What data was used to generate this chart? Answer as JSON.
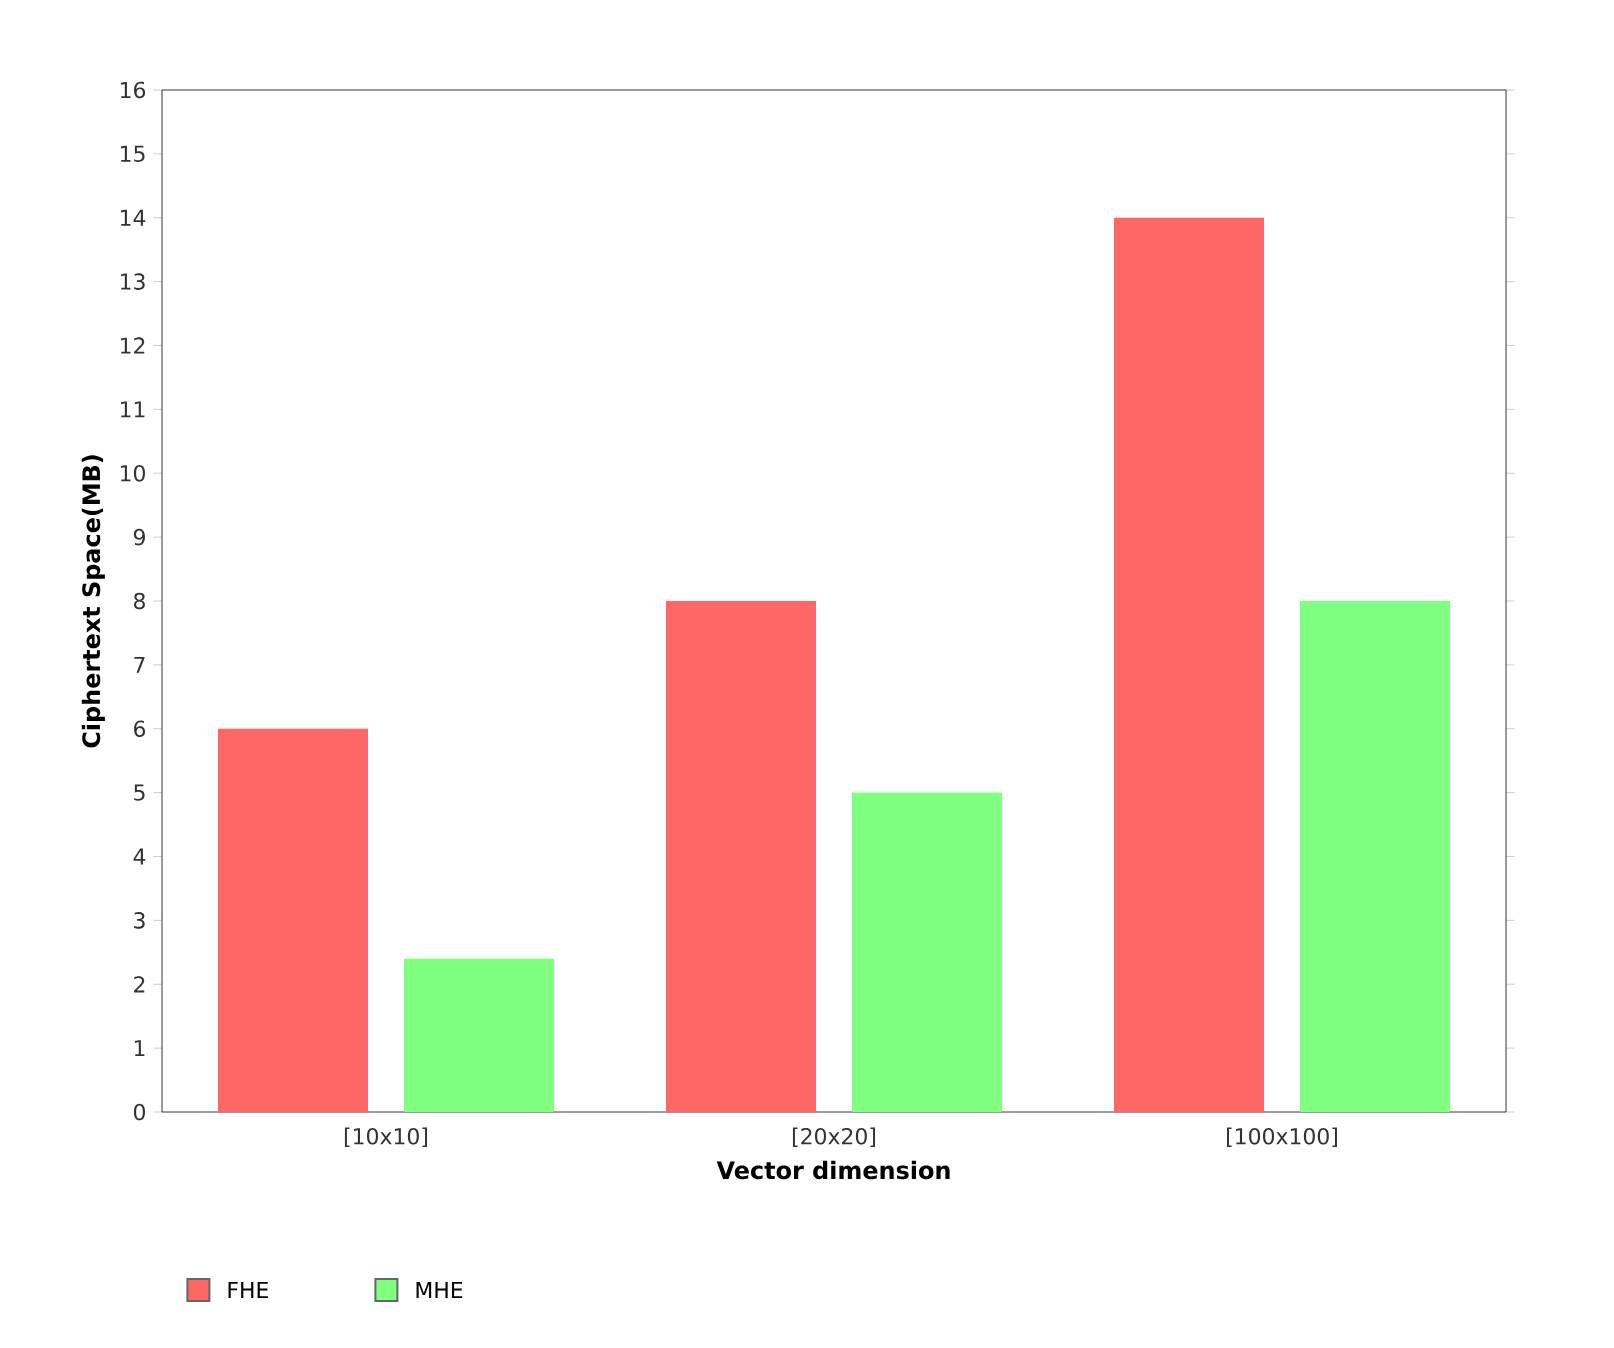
{
  "chart_data": {
    "type": "bar",
    "xlabel": "Vector dimension",
    "ylabel": "Ciphertext Space(MB)",
    "categories": [
      "[10x10]",
      "[20x20]",
      "[100x100]"
    ],
    "series": [
      {
        "name": "FHE",
        "color": "#ff6666",
        "values": [
          6,
          8,
          14
        ]
      },
      {
        "name": "MHE",
        "color": "#80ff80",
        "values": [
          2.4,
          5,
          8
        ]
      }
    ],
    "ylim": [
      0,
      16
    ],
    "yticks": [
      0,
      1,
      2,
      3,
      4,
      5,
      6,
      7,
      8,
      9,
      10,
      11,
      12,
      13,
      14,
      15,
      16
    ],
    "grid": false,
    "legend": "bottom left"
  }
}
